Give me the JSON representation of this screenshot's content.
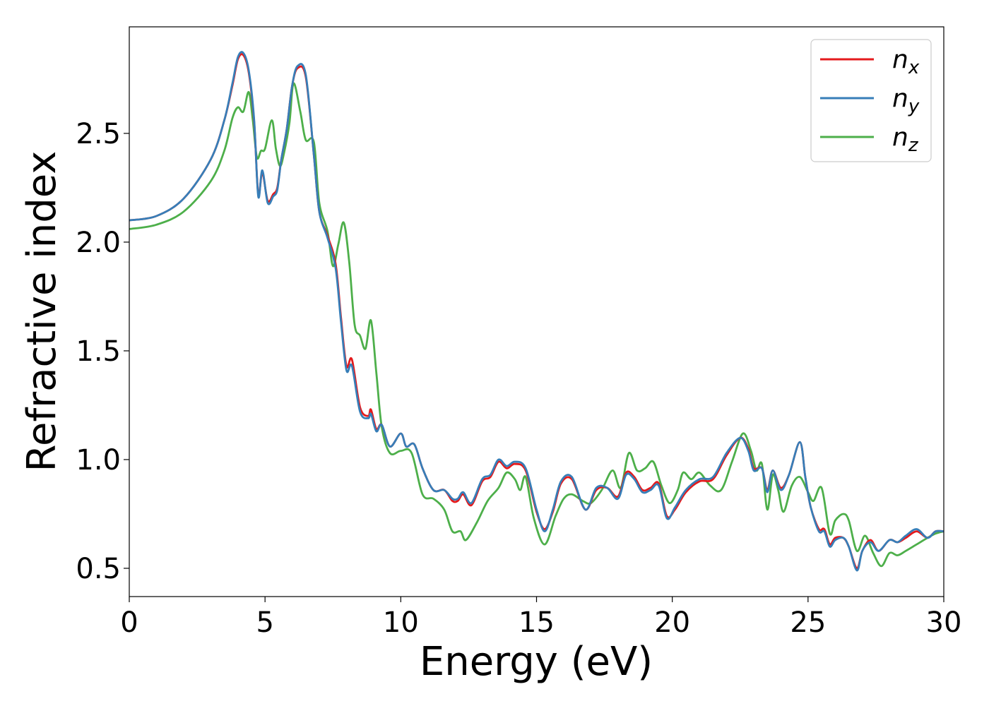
{
  "chart_data": {
    "type": "line",
    "title": "",
    "xlabel": "Energy (eV)",
    "ylabel": "Refractive index",
    "xlim": [
      0,
      30
    ],
    "ylim": [
      0.37,
      2.99
    ],
    "xticks": [
      0,
      5,
      10,
      15,
      20,
      25,
      30
    ],
    "xtick_labels": [
      "0",
      "5",
      "10",
      "15",
      "20",
      "25",
      "30"
    ],
    "yticks": [
      0.5,
      1.0,
      1.5,
      2.0,
      2.5
    ],
    "ytick_labels": [
      "0.5",
      "1.0",
      "1.5",
      "2.0",
      "2.5"
    ],
    "grid": false,
    "legend_position": "top-right",
    "series": [
      {
        "name": "n_x",
        "base": "n",
        "sub": "x",
        "color": "#e41a1c",
        "points": [
          [
            0,
            2.1
          ],
          [
            1,
            2.12
          ],
          [
            2,
            2.2
          ],
          [
            3,
            2.38
          ],
          [
            3.5,
            2.56
          ],
          [
            3.8,
            2.72
          ],
          [
            4.0,
            2.84
          ],
          [
            4.2,
            2.86
          ],
          [
            4.4,
            2.78
          ],
          [
            4.6,
            2.55
          ],
          [
            4.75,
            2.22
          ],
          [
            4.9,
            2.32
          ],
          [
            5.1,
            2.19
          ],
          [
            5.3,
            2.22
          ],
          [
            5.45,
            2.25
          ],
          [
            5.6,
            2.38
          ],
          [
            5.8,
            2.52
          ],
          [
            6.0,
            2.72
          ],
          [
            6.2,
            2.8
          ],
          [
            6.5,
            2.76
          ],
          [
            6.8,
            2.4
          ],
          [
            7.0,
            2.14
          ],
          [
            7.3,
            2.03
          ],
          [
            7.6,
            1.9
          ],
          [
            7.8,
            1.65
          ],
          [
            8.0,
            1.43
          ],
          [
            8.2,
            1.46
          ],
          [
            8.5,
            1.24
          ],
          [
            8.8,
            1.2
          ],
          [
            8.9,
            1.23
          ],
          [
            9.1,
            1.14
          ],
          [
            9.3,
            1.16
          ],
          [
            9.6,
            1.06
          ],
          [
            10.0,
            1.12
          ],
          [
            10.2,
            1.06
          ],
          [
            10.5,
            1.07
          ],
          [
            10.8,
            0.96
          ],
          [
            11.2,
            0.86
          ],
          [
            11.6,
            0.86
          ],
          [
            11.9,
            0.81
          ],
          [
            12.1,
            0.81
          ],
          [
            12.3,
            0.84
          ],
          [
            12.6,
            0.79
          ],
          [
            13.0,
            0.9
          ],
          [
            13.3,
            0.92
          ],
          [
            13.6,
            0.99
          ],
          [
            13.9,
            0.96
          ],
          [
            14.2,
            0.98
          ],
          [
            14.6,
            0.95
          ],
          [
            15.0,
            0.76
          ],
          [
            15.3,
            0.68
          ],
          [
            15.6,
            0.76
          ],
          [
            15.9,
            0.89
          ],
          [
            16.3,
            0.91
          ],
          [
            16.8,
            0.77
          ],
          [
            17.2,
            0.86
          ],
          [
            17.6,
            0.87
          ],
          [
            18.0,
            0.83
          ],
          [
            18.3,
            0.94
          ],
          [
            18.6,
            0.92
          ],
          [
            18.9,
            0.86
          ],
          [
            19.2,
            0.87
          ],
          [
            19.5,
            0.89
          ],
          [
            19.8,
            0.74
          ],
          [
            20.1,
            0.77
          ],
          [
            20.5,
            0.85
          ],
          [
            21.0,
            0.9
          ],
          [
            21.5,
            0.91
          ],
          [
            22.0,
            1.02
          ],
          [
            22.5,
            1.1
          ],
          [
            22.8,
            1.05
          ],
          [
            23.0,
            0.96
          ],
          [
            23.3,
            0.96
          ],
          [
            23.5,
            0.86
          ],
          [
            23.7,
            0.95
          ],
          [
            24.0,
            0.87
          ],
          [
            24.3,
            0.93
          ],
          [
            24.7,
            1.08
          ],
          [
            24.9,
            0.92
          ],
          [
            25.1,
            0.78
          ],
          [
            25.4,
            0.68
          ],
          [
            25.6,
            0.68
          ],
          [
            25.8,
            0.61
          ],
          [
            26.0,
            0.64
          ],
          [
            26.3,
            0.64
          ],
          [
            26.5,
            0.6
          ],
          [
            26.8,
            0.5
          ],
          [
            27.0,
            0.58
          ],
          [
            27.3,
            0.63
          ],
          [
            27.6,
            0.58
          ],
          [
            28.0,
            0.63
          ],
          [
            28.3,
            0.62
          ],
          [
            28.6,
            0.64
          ],
          [
            29.0,
            0.67
          ],
          [
            29.4,
            0.64
          ],
          [
            29.7,
            0.67
          ],
          [
            30.0,
            0.67
          ]
        ]
      },
      {
        "name": "n_y",
        "base": "n",
        "sub": "y",
        "color": "#377eb8",
        "points": [
          [
            0,
            2.1
          ],
          [
            1,
            2.12
          ],
          [
            2,
            2.2
          ],
          [
            3,
            2.38
          ],
          [
            3.5,
            2.56
          ],
          [
            3.8,
            2.73
          ],
          [
            4.0,
            2.85
          ],
          [
            4.2,
            2.87
          ],
          [
            4.4,
            2.79
          ],
          [
            4.6,
            2.56
          ],
          [
            4.75,
            2.21
          ],
          [
            4.9,
            2.33
          ],
          [
            5.1,
            2.18
          ],
          [
            5.3,
            2.21
          ],
          [
            5.45,
            2.24
          ],
          [
            5.6,
            2.38
          ],
          [
            5.8,
            2.52
          ],
          [
            6.0,
            2.72
          ],
          [
            6.2,
            2.81
          ],
          [
            6.5,
            2.77
          ],
          [
            6.8,
            2.4
          ],
          [
            7.0,
            2.14
          ],
          [
            7.3,
            2.02
          ],
          [
            7.6,
            1.88
          ],
          [
            7.8,
            1.63
          ],
          [
            8.0,
            1.41
          ],
          [
            8.2,
            1.43
          ],
          [
            8.5,
            1.22
          ],
          [
            8.8,
            1.19
          ],
          [
            8.9,
            1.21
          ],
          [
            9.1,
            1.13
          ],
          [
            9.3,
            1.16
          ],
          [
            9.6,
            1.06
          ],
          [
            10.0,
            1.12
          ],
          [
            10.2,
            1.06
          ],
          [
            10.5,
            1.07
          ],
          [
            10.8,
            0.96
          ],
          [
            11.2,
            0.86
          ],
          [
            11.6,
            0.86
          ],
          [
            11.9,
            0.82
          ],
          [
            12.1,
            0.82
          ],
          [
            12.3,
            0.85
          ],
          [
            12.6,
            0.8
          ],
          [
            13.0,
            0.91
          ],
          [
            13.3,
            0.93
          ],
          [
            13.6,
            1.0
          ],
          [
            13.9,
            0.97
          ],
          [
            14.2,
            0.99
          ],
          [
            14.6,
            0.96
          ],
          [
            15.0,
            0.77
          ],
          [
            15.3,
            0.67
          ],
          [
            15.6,
            0.77
          ],
          [
            15.9,
            0.9
          ],
          [
            16.3,
            0.92
          ],
          [
            16.8,
            0.77
          ],
          [
            17.2,
            0.87
          ],
          [
            17.6,
            0.87
          ],
          [
            18.0,
            0.82
          ],
          [
            18.3,
            0.93
          ],
          [
            18.6,
            0.91
          ],
          [
            18.9,
            0.85
          ],
          [
            19.2,
            0.86
          ],
          [
            19.5,
            0.88
          ],
          [
            19.8,
            0.73
          ],
          [
            20.1,
            0.78
          ],
          [
            20.5,
            0.86
          ],
          [
            21.0,
            0.91
          ],
          [
            21.5,
            0.92
          ],
          [
            22.0,
            1.03
          ],
          [
            22.5,
            1.1
          ],
          [
            22.8,
            1.04
          ],
          [
            23.0,
            0.95
          ],
          [
            23.3,
            0.96
          ],
          [
            23.5,
            0.85
          ],
          [
            23.7,
            0.95
          ],
          [
            24.0,
            0.86
          ],
          [
            24.3,
            0.93
          ],
          [
            24.7,
            1.08
          ],
          [
            24.9,
            0.92
          ],
          [
            25.1,
            0.78
          ],
          [
            25.4,
            0.67
          ],
          [
            25.6,
            0.67
          ],
          [
            25.8,
            0.6
          ],
          [
            26.0,
            0.63
          ],
          [
            26.3,
            0.64
          ],
          [
            26.5,
            0.6
          ],
          [
            26.8,
            0.49
          ],
          [
            27.0,
            0.58
          ],
          [
            27.3,
            0.62
          ],
          [
            27.6,
            0.58
          ],
          [
            28.0,
            0.63
          ],
          [
            28.3,
            0.62
          ],
          [
            28.6,
            0.65
          ],
          [
            29.0,
            0.68
          ],
          [
            29.4,
            0.64
          ],
          [
            29.7,
            0.67
          ],
          [
            30.0,
            0.67
          ]
        ]
      },
      {
        "name": "n_z",
        "base": "n",
        "sub": "z",
        "color": "#4daf4a",
        "points": [
          [
            0,
            2.06
          ],
          [
            1,
            2.08
          ],
          [
            2,
            2.14
          ],
          [
            3,
            2.28
          ],
          [
            3.5,
            2.42
          ],
          [
            3.8,
            2.57
          ],
          [
            4.0,
            2.62
          ],
          [
            4.2,
            2.6
          ],
          [
            4.4,
            2.69
          ],
          [
            4.55,
            2.56
          ],
          [
            4.7,
            2.39
          ],
          [
            4.85,
            2.42
          ],
          [
            5.0,
            2.43
          ],
          [
            5.25,
            2.56
          ],
          [
            5.4,
            2.43
          ],
          [
            5.55,
            2.35
          ],
          [
            5.7,
            2.41
          ],
          [
            5.9,
            2.55
          ],
          [
            6.05,
            2.73
          ],
          [
            6.3,
            2.6
          ],
          [
            6.5,
            2.47
          ],
          [
            6.8,
            2.46
          ],
          [
            7.0,
            2.18
          ],
          [
            7.3,
            2.05
          ],
          [
            7.5,
            1.89
          ],
          [
            7.7,
            1.99
          ],
          [
            7.9,
            2.09
          ],
          [
            8.1,
            1.91
          ],
          [
            8.3,
            1.62
          ],
          [
            8.5,
            1.57
          ],
          [
            8.7,
            1.51
          ],
          [
            8.9,
            1.64
          ],
          [
            9.1,
            1.4
          ],
          [
            9.3,
            1.15
          ],
          [
            9.6,
            1.03
          ],
          [
            10.0,
            1.04
          ],
          [
            10.4,
            1.03
          ],
          [
            10.8,
            0.84
          ],
          [
            11.2,
            0.82
          ],
          [
            11.6,
            0.77
          ],
          [
            11.9,
            0.67
          ],
          [
            12.2,
            0.67
          ],
          [
            12.4,
            0.63
          ],
          [
            12.8,
            0.71
          ],
          [
            13.2,
            0.81
          ],
          [
            13.6,
            0.87
          ],
          [
            13.9,
            0.94
          ],
          [
            14.2,
            0.91
          ],
          [
            14.4,
            0.86
          ],
          [
            14.6,
            0.92
          ],
          [
            14.9,
            0.73
          ],
          [
            15.3,
            0.61
          ],
          [
            15.7,
            0.74
          ],
          [
            16.0,
            0.82
          ],
          [
            16.3,
            0.84
          ],
          [
            16.7,
            0.81
          ],
          [
            17.0,
            0.8
          ],
          [
            17.4,
            0.86
          ],
          [
            17.8,
            0.95
          ],
          [
            18.1,
            0.87
          ],
          [
            18.4,
            1.03
          ],
          [
            18.7,
            0.95
          ],
          [
            19.0,
            0.96
          ],
          [
            19.3,
            0.99
          ],
          [
            19.6,
            0.88
          ],
          [
            19.9,
            0.8
          ],
          [
            20.2,
            0.86
          ],
          [
            20.4,
            0.94
          ],
          [
            20.7,
            0.91
          ],
          [
            21.0,
            0.94
          ],
          [
            21.4,
            0.88
          ],
          [
            21.8,
            0.86
          ],
          [
            22.2,
            0.99
          ],
          [
            22.6,
            1.12
          ],
          [
            22.9,
            1.04
          ],
          [
            23.1,
            0.95
          ],
          [
            23.3,
            0.98
          ],
          [
            23.5,
            0.77
          ],
          [
            23.7,
            0.93
          ],
          [
            23.9,
            0.86
          ],
          [
            24.1,
            0.76
          ],
          [
            24.4,
            0.88
          ],
          [
            24.7,
            0.92
          ],
          [
            25.0,
            0.85
          ],
          [
            25.2,
            0.81
          ],
          [
            25.5,
            0.87
          ],
          [
            25.8,
            0.66
          ],
          [
            26.0,
            0.72
          ],
          [
            26.3,
            0.75
          ],
          [
            26.5,
            0.72
          ],
          [
            26.8,
            0.58
          ],
          [
            27.1,
            0.65
          ],
          [
            27.4,
            0.57
          ],
          [
            27.7,
            0.51
          ],
          [
            28.0,
            0.57
          ],
          [
            28.3,
            0.56
          ],
          [
            28.6,
            0.58
          ],
          [
            29.0,
            0.61
          ],
          [
            29.4,
            0.64
          ],
          [
            29.7,
            0.66
          ],
          [
            30.0,
            0.67
          ]
        ]
      }
    ]
  }
}
